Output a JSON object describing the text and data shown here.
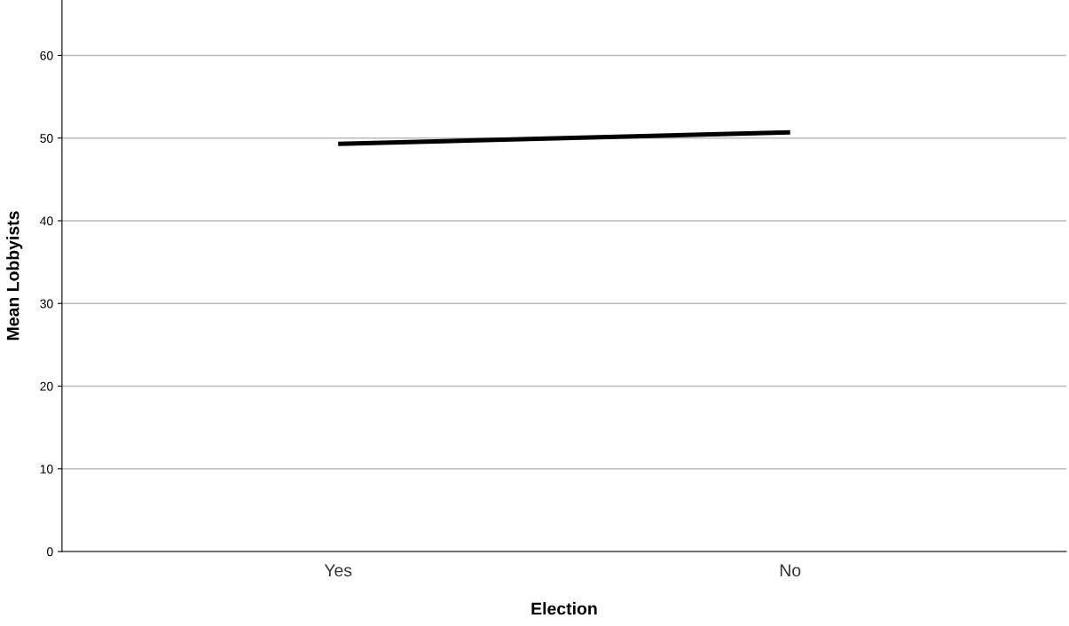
{
  "chart_data": {
    "type": "line",
    "xlabel": "Election",
    "ylabel": "Mean Lobbyists",
    "categories": [
      "Yes",
      "No"
    ],
    "series": [
      {
        "color": "#000000",
        "values": [
          49.3,
          50.7
        ]
      }
    ],
    "ylim": [
      0,
      66.7
    ],
    "yticks": [
      0,
      10,
      20,
      30,
      40,
      50,
      60
    ],
    "grid": "y",
    "marker": "none",
    "line_style": "solid"
  }
}
